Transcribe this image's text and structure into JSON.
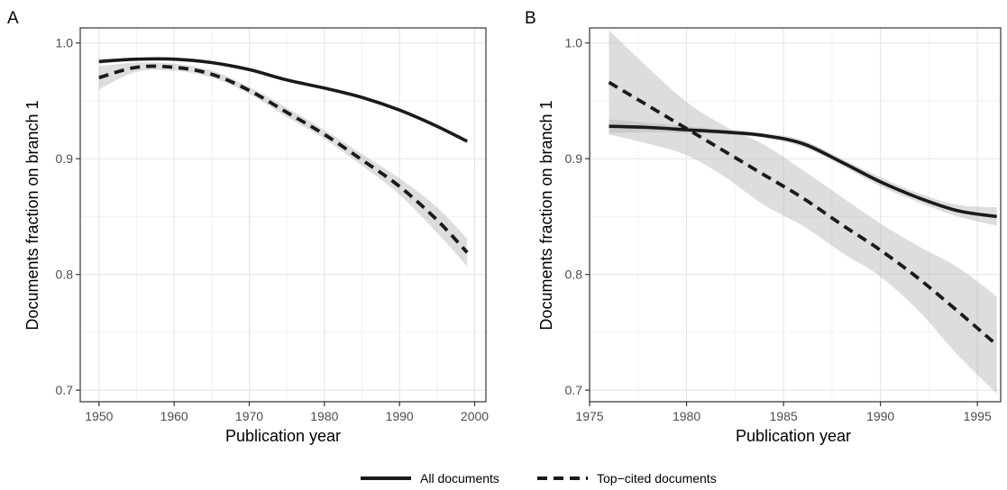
{
  "colors": {
    "line": "#1a1a1a",
    "ribbon": "#b3b3b3",
    "grid_major": "#e6e6e6",
    "grid_minor": "#f2f2f2",
    "panel_border": "#333333"
  },
  "legend": {
    "position": "bottom",
    "items": [
      {
        "label": "All documents",
        "linetype": "solid"
      },
      {
        "label": "Top−cited documents",
        "linetype": "dashed"
      }
    ]
  },
  "chart_data": [
    {
      "panel": "A",
      "type": "line",
      "xlabel": "Publication year",
      "ylabel": "Documents fraction on branch 1",
      "xlim": [
        1947.5,
        2001.5
      ],
      "ylim": [
        0.69,
        1.013
      ],
      "x_ticks": [
        1950,
        1960,
        1970,
        1980,
        1990,
        2000
      ],
      "y_ticks": [
        0.7,
        0.8,
        0.9,
        1.0
      ],
      "y_tick_labels": [
        "0.7",
        "0.8",
        "0.9",
        "1.0"
      ],
      "grid": true,
      "series": [
        {
          "name": "All documents",
          "linetype": "solid",
          "x": [
            1950,
            1955,
            1960,
            1965,
            1970,
            1975,
            1980,
            1985,
            1990,
            1995,
            1999
          ],
          "y": [
            0.984,
            0.986,
            0.986,
            0.983,
            0.977,
            0.968,
            0.961,
            0.953,
            0.942,
            0.928,
            0.915
          ],
          "ci_low": [
            0.982,
            0.985,
            0.985,
            0.982,
            0.976,
            0.967,
            0.96,
            0.952,
            0.941,
            0.927,
            0.913
          ],
          "ci_high": [
            0.986,
            0.987,
            0.987,
            0.984,
            0.978,
            0.969,
            0.962,
            0.954,
            0.943,
            0.929,
            0.917
          ]
        },
        {
          "name": "Top−cited documents",
          "linetype": "dashed",
          "x": [
            1950,
            1955,
            1960,
            1965,
            1970,
            1975,
            1980,
            1985,
            1990,
            1995,
            1999
          ],
          "y": [
            0.97,
            0.979,
            0.979,
            0.973,
            0.959,
            0.94,
            0.921,
            0.899,
            0.876,
            0.847,
            0.819
          ],
          "ci_low": [
            0.96,
            0.975,
            0.976,
            0.97,
            0.956,
            0.936,
            0.917,
            0.894,
            0.869,
            0.836,
            0.807
          ],
          "ci_high": [
            0.98,
            0.983,
            0.982,
            0.976,
            0.962,
            0.944,
            0.925,
            0.904,
            0.883,
            0.858,
            0.831
          ]
        }
      ]
    },
    {
      "panel": "B",
      "type": "line",
      "xlabel": "Publication year",
      "ylabel": "Documents fraction on branch 1",
      "xlim": [
        1975,
        1996.2
      ],
      "ylim": [
        0.69,
        1.013
      ],
      "x_ticks": [
        1975,
        1980,
        1985,
        1990,
        1995
      ],
      "y_ticks": [
        0.7,
        0.8,
        0.9,
        1.0
      ],
      "y_tick_labels": [
        "0.7",
        "0.8",
        "0.9",
        "1.0"
      ],
      "grid": true,
      "series": [
        {
          "name": "All documents",
          "linetype": "solid",
          "x": [
            1976,
            1978,
            1980,
            1982,
            1984,
            1986,
            1988,
            1990,
            1992,
            1994,
            1996
          ],
          "y": [
            0.928,
            0.927,
            0.925,
            0.923,
            0.92,
            0.913,
            0.897,
            0.88,
            0.866,
            0.855,
            0.85
          ],
          "ci_low": [
            0.922,
            0.923,
            0.922,
            0.921,
            0.918,
            0.91,
            0.894,
            0.876,
            0.862,
            0.85,
            0.842
          ],
          "ci_high": [
            0.934,
            0.931,
            0.928,
            0.925,
            0.922,
            0.916,
            0.9,
            0.884,
            0.87,
            0.86,
            0.858
          ]
        },
        {
          "name": "Top−cited documents",
          "linetype": "dashed",
          "x": [
            1976,
            1978,
            1980,
            1982,
            1984,
            1986,
            1988,
            1990,
            1992,
            1994,
            1996
          ],
          "y": [
            0.966,
            0.946,
            0.926,
            0.906,
            0.886,
            0.866,
            0.843,
            0.821,
            0.796,
            0.768,
            0.739
          ],
          "ci_low": [
            0.921,
            0.913,
            0.903,
            0.884,
            0.86,
            0.842,
            0.819,
            0.798,
            0.768,
            0.73,
            0.697
          ],
          "ci_high": [
            1.011,
            0.979,
            0.949,
            0.928,
            0.912,
            0.89,
            0.867,
            0.844,
            0.824,
            0.806,
            0.781
          ]
        }
      ]
    }
  ]
}
